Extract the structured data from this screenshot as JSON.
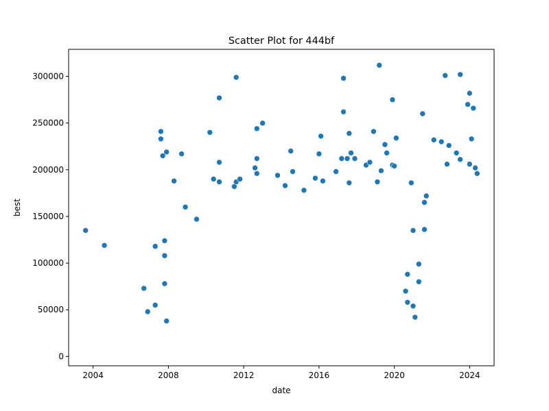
{
  "chart_data": {
    "type": "scatter",
    "title": "Scatter Plot for 444bf",
    "xlabel": "date",
    "ylabel": "best",
    "x_axis_kind": "date-year",
    "xlim": [
      2002.7,
      2025.3
    ],
    "ylim": [
      -10000,
      329000
    ],
    "x_ticks": [
      2004,
      2008,
      2012,
      2016,
      2020,
      2024
    ],
    "y_ticks": [
      0,
      50000,
      100000,
      150000,
      200000,
      250000,
      300000
    ],
    "x_tick_labels": [
      "2004",
      "2008",
      "2012",
      "2016",
      "2020",
      "2024"
    ],
    "y_tick_labels": [
      "0",
      "50000",
      "100000",
      "150000",
      "200000",
      "250000",
      "300000"
    ],
    "grid": false,
    "legend": "none",
    "marker_color": "#1f77b4",
    "marker_edge": "#ffffff",
    "series": [
      {
        "points": [
          [
            2003.6,
            135000
          ],
          [
            2004.6,
            119000
          ],
          [
            2006.7,
            73000
          ],
          [
            2006.9,
            48000
          ],
          [
            2007.3,
            118000
          ],
          [
            2007.3,
            55000
          ],
          [
            2007.6,
            241000
          ],
          [
            2007.6,
            233000
          ],
          [
            2007.7,
            215000
          ],
          [
            2007.9,
            219000
          ],
          [
            2007.8,
            124000
          ],
          [
            2007.8,
            108000
          ],
          [
            2007.8,
            78000
          ],
          [
            2007.9,
            38000
          ],
          [
            2008.3,
            188000
          ],
          [
            2008.7,
            217000
          ],
          [
            2008.9,
            160000
          ],
          [
            2009.5,
            147000
          ],
          [
            2010.2,
            240000
          ],
          [
            2010.7,
            277000
          ],
          [
            2010.7,
            208000
          ],
          [
            2010.4,
            190000
          ],
          [
            2010.7,
            187000
          ],
          [
            2011.6,
            299000
          ],
          [
            2011.5,
            182000
          ],
          [
            2011.6,
            187000
          ],
          [
            2011.8,
            190000
          ],
          [
            2012.7,
            244000
          ],
          [
            2013.0,
            250000
          ],
          [
            2012.7,
            212000
          ],
          [
            2012.6,
            202000
          ],
          [
            2012.7,
            196000
          ],
          [
            2013.8,
            194000
          ],
          [
            2014.2,
            183000
          ],
          [
            2014.5,
            220000
          ],
          [
            2014.6,
            198000
          ],
          [
            2015.2,
            178000
          ],
          [
            2016.0,
            217000
          ],
          [
            2016.1,
            236000
          ],
          [
            2015.8,
            191000
          ],
          [
            2016.2,
            188000
          ],
          [
            2017.3,
            298000
          ],
          [
            2017.3,
            262000
          ],
          [
            2016.9,
            198000
          ],
          [
            2017.6,
            239000
          ],
          [
            2017.5,
            212000
          ],
          [
            2017.7,
            218000
          ],
          [
            2017.2,
            212000
          ],
          [
            2017.9,
            212000
          ],
          [
            2017.6,
            186000
          ],
          [
            2018.5,
            205000
          ],
          [
            2018.7,
            208000
          ],
          [
            2018.9,
            241000
          ],
          [
            2019.2,
            312000
          ],
          [
            2019.5,
            227000
          ],
          [
            2019.6,
            218000
          ],
          [
            2019.3,
            199000
          ],
          [
            2019.1,
            187000
          ],
          [
            2019.9,
            275000
          ],
          [
            2020.1,
            234000
          ],
          [
            2019.9,
            205000
          ],
          [
            2020.0,
            204000
          ],
          [
            2020.9,
            186000
          ],
          [
            2021.5,
            260000
          ],
          [
            2021.7,
            172000
          ],
          [
            2022.1,
            232000
          ],
          [
            2022.5,
            230000
          ],
          [
            2022.7,
            301000
          ],
          [
            2022.9,
            226000
          ],
          [
            2022.8,
            206000
          ],
          [
            2023.3,
            218000
          ],
          [
            2023.5,
            302000
          ],
          [
            2023.5,
            211000
          ],
          [
            2023.9,
            270000
          ],
          [
            2024.0,
            282000
          ],
          [
            2024.2,
            266000
          ],
          [
            2024.1,
            233000
          ],
          [
            2024.0,
            206000
          ],
          [
            2024.3,
            202000
          ],
          [
            2024.4,
            196000
          ],
          [
            2020.7,
            88000
          ],
          [
            2020.6,
            70000
          ],
          [
            2020.7,
            58000
          ],
          [
            2021.0,
            135000
          ],
          [
            2021.0,
            54000
          ],
          [
            2021.1,
            42000
          ],
          [
            2021.3,
            99000
          ],
          [
            2021.3,
            80000
          ],
          [
            2021.6,
            136000
          ],
          [
            2021.6,
            165000
          ]
        ]
      }
    ]
  }
}
